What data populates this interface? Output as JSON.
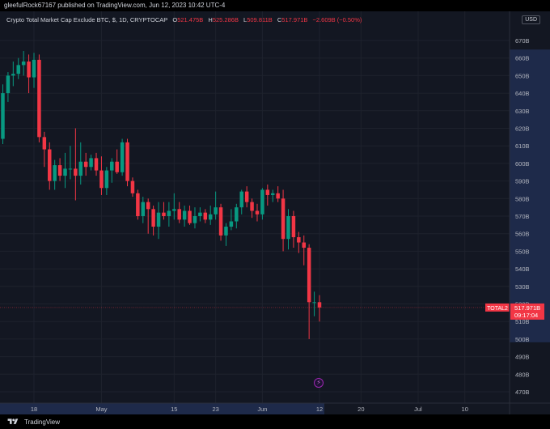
{
  "header": {
    "published_text": "gleefulRock67167 published on TradingView.com, Jun 12, 2023 10:42 UTC-4"
  },
  "legend": {
    "title": "Crypto Total Market Cap Exclude BTC, $, 1D, CRYPTOCAP",
    "open_label": "O",
    "open": "521.475B",
    "high_label": "H",
    "high": "525.286B",
    "low_label": "L",
    "low": "509.811B",
    "close_label": "C",
    "close": "517.971B",
    "change": "−2.609B (−0.50%)"
  },
  "price_axis": {
    "currency": "USD",
    "ticks": [
      "670B",
      "660B",
      "650B",
      "640B",
      "630B",
      "620B",
      "610B",
      "600B",
      "590B",
      "580B",
      "570B",
      "560B",
      "550B",
      "540B",
      "530B",
      "520B",
      "510B",
      "500B",
      "490B",
      "480B",
      "470B"
    ],
    "last_price_symbol": "TOTAL2",
    "last_price": "517.971B",
    "countdown": "09:17:04"
  },
  "time_axis": {
    "ticks": [
      {
        "label": "18",
        "date": "2023-04-18"
      },
      {
        "label": "May",
        "date": "2023-05-01"
      },
      {
        "label": "15",
        "date": "2023-05-15"
      },
      {
        "label": "23",
        "date": "2023-05-23"
      },
      {
        "label": "Jun",
        "date": "2023-06-01"
      },
      {
        "label": "12",
        "date": "2023-06-12"
      },
      {
        "label": "20",
        "date": "2023-06-20"
      },
      {
        "label": "Jul",
        "date": "2023-07-01"
      },
      {
        "label": "10",
        "date": "2023-07-10"
      }
    ]
  },
  "footer": {
    "brand": "TradingView"
  },
  "colors": {
    "background": "#131722",
    "up": "#089981",
    "down": "#f23645",
    "grid": "#1e222d",
    "axis_text": "#b2b5be",
    "highlight": "#1e2a4a"
  },
  "chart_data": {
    "type": "candlestick",
    "title": "Crypto Total Market Cap Exclude BTC, $, 1D, CRYPTOCAP",
    "ylim": [
      465,
      675
    ],
    "y_unit": "B USD",
    "x_start": "2023-04-10",
    "x_end": "2023-07-16",
    "ohlc_order": [
      "open",
      "high",
      "low",
      "close"
    ],
    "candles": [
      [
        "2023-04-11",
        614,
        625,
        611,
        613
      ],
      [
        "2023-04-12",
        614,
        645,
        611,
        640
      ],
      [
        "2023-04-13",
        640,
        652,
        635,
        650
      ],
      [
        "2023-04-14",
        650,
        658,
        644,
        651
      ],
      [
        "2023-04-15",
        651,
        660,
        648,
        656
      ],
      [
        "2023-04-16",
        656,
        664,
        650,
        658
      ],
      [
        "2023-04-17",
        658,
        662,
        640,
        649
      ],
      [
        "2023-04-18",
        649,
        663,
        643,
        659
      ],
      [
        "2023-04-19",
        659,
        662,
        612,
        615
      ],
      [
        "2023-04-20",
        615,
        618,
        598,
        608
      ],
      [
        "2023-04-21",
        608,
        612,
        585,
        590
      ],
      [
        "2023-04-22",
        590,
        602,
        585,
        599
      ],
      [
        "2023-04-23",
        599,
        603,
        590,
        593
      ],
      [
        "2023-04-24",
        593,
        606,
        586,
        597
      ],
      [
        "2023-04-25",
        597,
        610,
        591,
        597
      ],
      [
        "2023-04-26",
        597,
        620,
        579,
        593
      ],
      [
        "2023-04-27",
        593,
        612,
        588,
        601
      ],
      [
        "2023-04-28",
        601,
        606,
        593,
        598
      ],
      [
        "2023-04-29",
        598,
        605,
        596,
        603
      ],
      [
        "2023-04-30",
        603,
        606,
        593,
        596
      ],
      [
        "2023-05-01",
        596,
        604,
        582,
        586
      ],
      [
        "2023-05-02",
        586,
        598,
        582,
        596
      ],
      [
        "2023-05-03",
        596,
        603,
        589,
        601
      ],
      [
        "2023-05-04",
        601,
        608,
        594,
        595
      ],
      [
        "2023-05-05",
        595,
        614,
        593,
        612
      ],
      [
        "2023-05-06",
        612,
        614,
        587,
        590
      ],
      [
        "2023-05-07",
        590,
        592,
        581,
        583
      ],
      [
        "2023-05-08",
        583,
        585,
        568,
        570
      ],
      [
        "2023-05-09",
        570,
        581,
        566,
        578
      ],
      [
        "2023-05-10",
        578,
        580,
        560,
        574
      ],
      [
        "2023-05-11",
        574,
        576,
        559,
        564
      ],
      [
        "2023-05-12",
        564,
        578,
        557,
        572
      ],
      [
        "2023-05-13",
        572,
        578,
        568,
        570
      ],
      [
        "2023-05-14",
        570,
        578,
        564,
        573
      ],
      [
        "2023-05-15",
        573,
        583,
        568,
        574
      ],
      [
        "2023-05-16",
        574,
        578,
        566,
        568
      ],
      [
        "2023-05-17",
        568,
        576,
        564,
        573
      ],
      [
        "2023-05-18",
        573,
        576,
        565,
        566
      ],
      [
        "2023-05-19",
        566,
        575,
        563,
        570
      ],
      [
        "2023-05-20",
        570,
        575,
        567,
        572
      ],
      [
        "2023-05-21",
        572,
        574,
        566,
        568
      ],
      [
        "2023-05-22",
        568,
        576,
        565,
        571
      ],
      [
        "2023-05-23",
        571,
        584,
        568,
        575
      ],
      [
        "2023-05-24",
        575,
        577,
        556,
        559
      ],
      [
        "2023-05-25",
        559,
        566,
        553,
        564
      ],
      [
        "2023-05-26",
        564,
        574,
        562,
        567
      ],
      [
        "2023-05-27",
        567,
        577,
        563,
        575
      ],
      [
        "2023-05-28",
        575,
        585,
        571,
        584
      ],
      [
        "2023-05-29",
        584,
        587,
        575,
        578
      ],
      [
        "2023-05-30",
        578,
        580,
        569,
        573
      ],
      [
        "2023-05-31",
        573,
        577,
        567,
        571
      ],
      [
        "2023-06-01",
        571,
        586,
        568,
        585
      ],
      [
        "2023-06-02",
        585,
        588,
        576,
        582
      ],
      [
        "2023-06-03",
        582,
        585,
        578,
        583
      ],
      [
        "2023-06-04",
        583,
        587,
        578,
        580
      ],
      [
        "2023-06-05",
        580,
        585,
        550,
        557
      ],
      [
        "2023-06-06",
        557,
        574,
        551,
        570
      ],
      [
        "2023-06-07",
        570,
        573,
        552,
        558
      ],
      [
        "2023-06-08",
        558,
        561,
        549,
        555
      ],
      [
        "2023-06-09",
        555,
        559,
        542,
        552
      ],
      [
        "2023-06-10",
        552,
        554,
        500,
        521
      ],
      [
        "2023-06-11",
        521,
        527,
        513,
        521
      ],
      [
        "2023-06-12",
        521,
        525,
        510,
        518
      ]
    ],
    "last_price_line": 517.971,
    "grid": true
  }
}
